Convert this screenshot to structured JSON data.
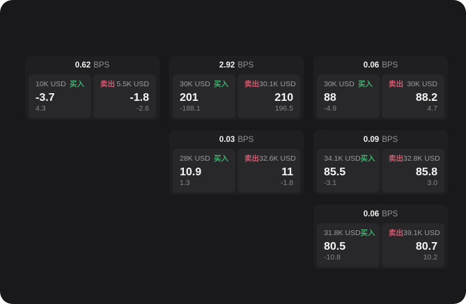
{
  "labels": {
    "buy": "买入",
    "sell": "卖出",
    "bps_unit": "BPS"
  },
  "colors": {
    "background": "#19191b",
    "card": "#1f1f21",
    "panel": "#28282a",
    "buy_accent": "#3fae6e",
    "sell_accent": "#d05a70"
  },
  "cards": [
    {
      "bps": "0.62",
      "buy": {
        "amount": "10K USD",
        "price": "-3.7",
        "delta": "4.3"
      },
      "sell": {
        "amount": "5.5K USD",
        "price": "-1.8",
        "delta": "-2.6"
      }
    },
    {
      "bps": "2.92",
      "buy": {
        "amount": "30K USD",
        "price": "201",
        "delta": "-188.1"
      },
      "sell": {
        "amount": "30.1K USD",
        "price": "210",
        "delta": "196.5"
      }
    },
    {
      "bps": "0.06",
      "buy": {
        "amount": "30K USD",
        "price": "88",
        "delta": "-4.9"
      },
      "sell": {
        "amount": "30K USD",
        "price": "88.2",
        "delta": "4.7"
      }
    },
    {
      "bps": "0.03",
      "buy": {
        "amount": "28K USD",
        "price": "10.9",
        "delta": "1.3"
      },
      "sell": {
        "amount": "32.6K USD",
        "price": "11",
        "delta": "-1.8"
      }
    },
    {
      "bps": "0.09",
      "buy": {
        "amount": "34.1K USD",
        "price": "85.5",
        "delta": "-3.1"
      },
      "sell": {
        "amount": "32.8K USD",
        "price": "85.8",
        "delta": "3.0"
      }
    },
    {
      "bps": "0.06",
      "buy": {
        "amount": "31.8K USD",
        "price": "80.5",
        "delta": "-10.8"
      },
      "sell": {
        "amount": "39.1K USD",
        "price": "80.7",
        "delta": "10.2"
      }
    }
  ]
}
